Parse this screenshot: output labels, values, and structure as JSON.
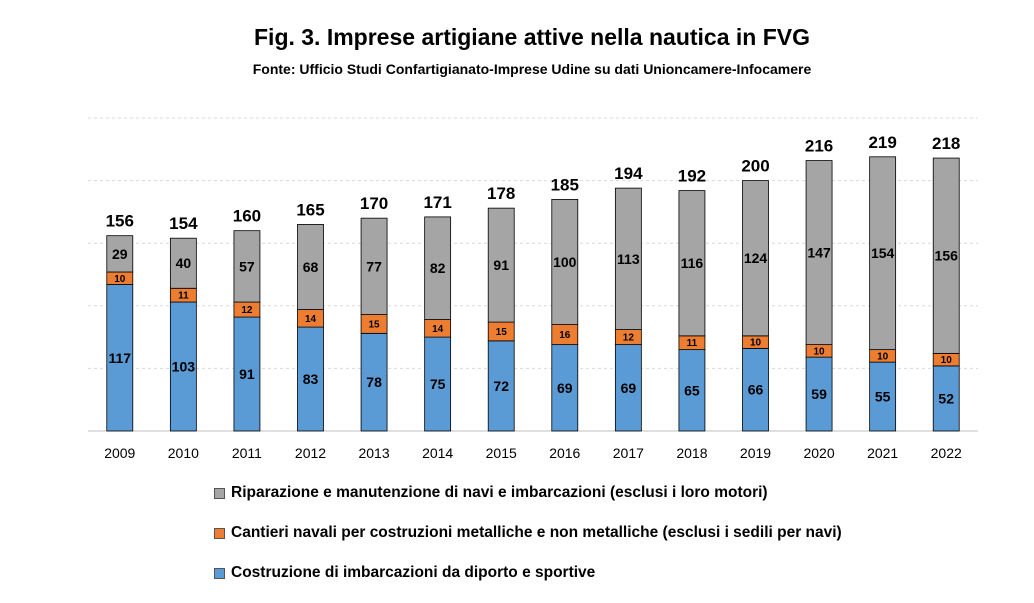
{
  "title": "Fig. 3. Imprese artigiane attive nella nautica in FVG",
  "subtitle": "Fonte: Ufficio Studi Confartigianato-Imprese Udine su dati Unioncamere-Infocamere",
  "chart_data": {
    "type": "bar",
    "stacked": true,
    "categories": [
      "2009",
      "2010",
      "2011",
      "2012",
      "2013",
      "2014",
      "2015",
      "2016",
      "2017",
      "2018",
      "2019",
      "2020",
      "2021",
      "2022"
    ],
    "series": [
      {
        "name": "Costruzione di imbarcazioni da diporto e sportive",
        "color": "#5b9bd5",
        "values": [
          117,
          103,
          91,
          83,
          78,
          75,
          72,
          69,
          69,
          65,
          66,
          59,
          55,
          52
        ]
      },
      {
        "name": "Cantieri navali per costruzioni metalliche e non metalliche (esclusi i sedili per navi)",
        "color": "#ed7d31",
        "values": [
          10,
          11,
          12,
          14,
          15,
          14,
          15,
          16,
          12,
          11,
          10,
          10,
          10,
          10
        ]
      },
      {
        "name": "Riparazione e manutenzione di navi e imbarcazioni (esclusi i loro motori)",
        "color": "#a5a5a5",
        "values": [
          29,
          40,
          57,
          68,
          77,
          82,
          91,
          100,
          113,
          116,
          124,
          147,
          154,
          156
        ]
      }
    ],
    "totals": [
      156,
      154,
      160,
      165,
      170,
      171,
      178,
      185,
      194,
      192,
      200,
      216,
      219,
      218
    ],
    "ylim": [
      0,
      250
    ],
    "grid": true,
    "legend_position": "bottom"
  }
}
